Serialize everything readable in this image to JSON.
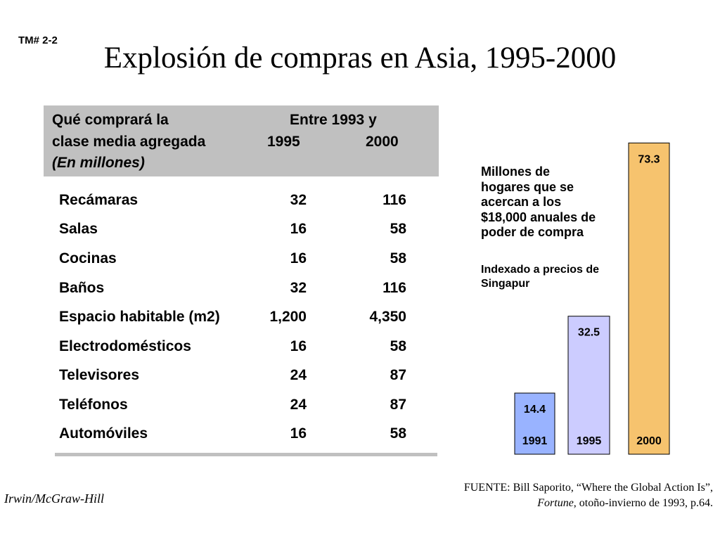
{
  "slide_code": "TM# 2-2",
  "title": "Explosión de compras en Asia, 1995-2000",
  "table": {
    "header": {
      "col1_line1": "Qué comprará la",
      "col1_line2": "clase media agregada",
      "col1_line3": "(En millones)",
      "period_label": "Entre 1993 y",
      "col2": "1995",
      "col3": "2000"
    },
    "rows": [
      {
        "label": "Recámaras",
        "v1995": "32",
        "v2000": "116"
      },
      {
        "label": "Salas",
        "v1995": "16",
        "v2000": "58"
      },
      {
        "label": "Cocinas",
        "v1995": "16",
        "v2000": "58"
      },
      {
        "label": "Baños",
        "v1995": "32",
        "v2000": "116"
      },
      {
        "label": "Espacio habitable (m2)",
        "v1995": "1,200",
        "v2000": "4,350"
      },
      {
        "label": "Electrodomésticos",
        "v1995": "16",
        "v2000": "58"
      },
      {
        "label": "Televisores",
        "v1995": "24",
        "v2000": "87"
      },
      {
        "label": "Teléfonos",
        "v1995": "24",
        "v2000": "87"
      },
      {
        "label": "Automóviles",
        "v1995": "16",
        "v2000": "58"
      }
    ]
  },
  "annotation": {
    "lines": [
      "Millones de",
      "hogares que se",
      "acercan a los",
      "$18,000 anuales de",
      "poder de compra"
    ],
    "sub_lines": [
      "Indexado a precios de",
      "Singapur"
    ]
  },
  "chart_data": {
    "type": "bar",
    "categories": [
      "1991",
      "1995",
      "2000"
    ],
    "values": [
      14.4,
      32.5,
      73.3
    ],
    "value_labels": [
      "14.4",
      "32.5",
      "73.3"
    ],
    "colors": [
      "#99b3ff",
      "#ccccff",
      "#f6c36e"
    ],
    "ylim": [
      0,
      80
    ],
    "title": "",
    "xlabel": "",
    "ylabel": ""
  },
  "footer": {
    "publisher": "Irwin/McGraw-Hill",
    "source_prefix": "FUENTE: Bill Saporito, “Where the Global Action Is”,",
    "source_publication": "Fortune",
    "source_suffix": ", otoño-invierno de 1993, p.64."
  }
}
